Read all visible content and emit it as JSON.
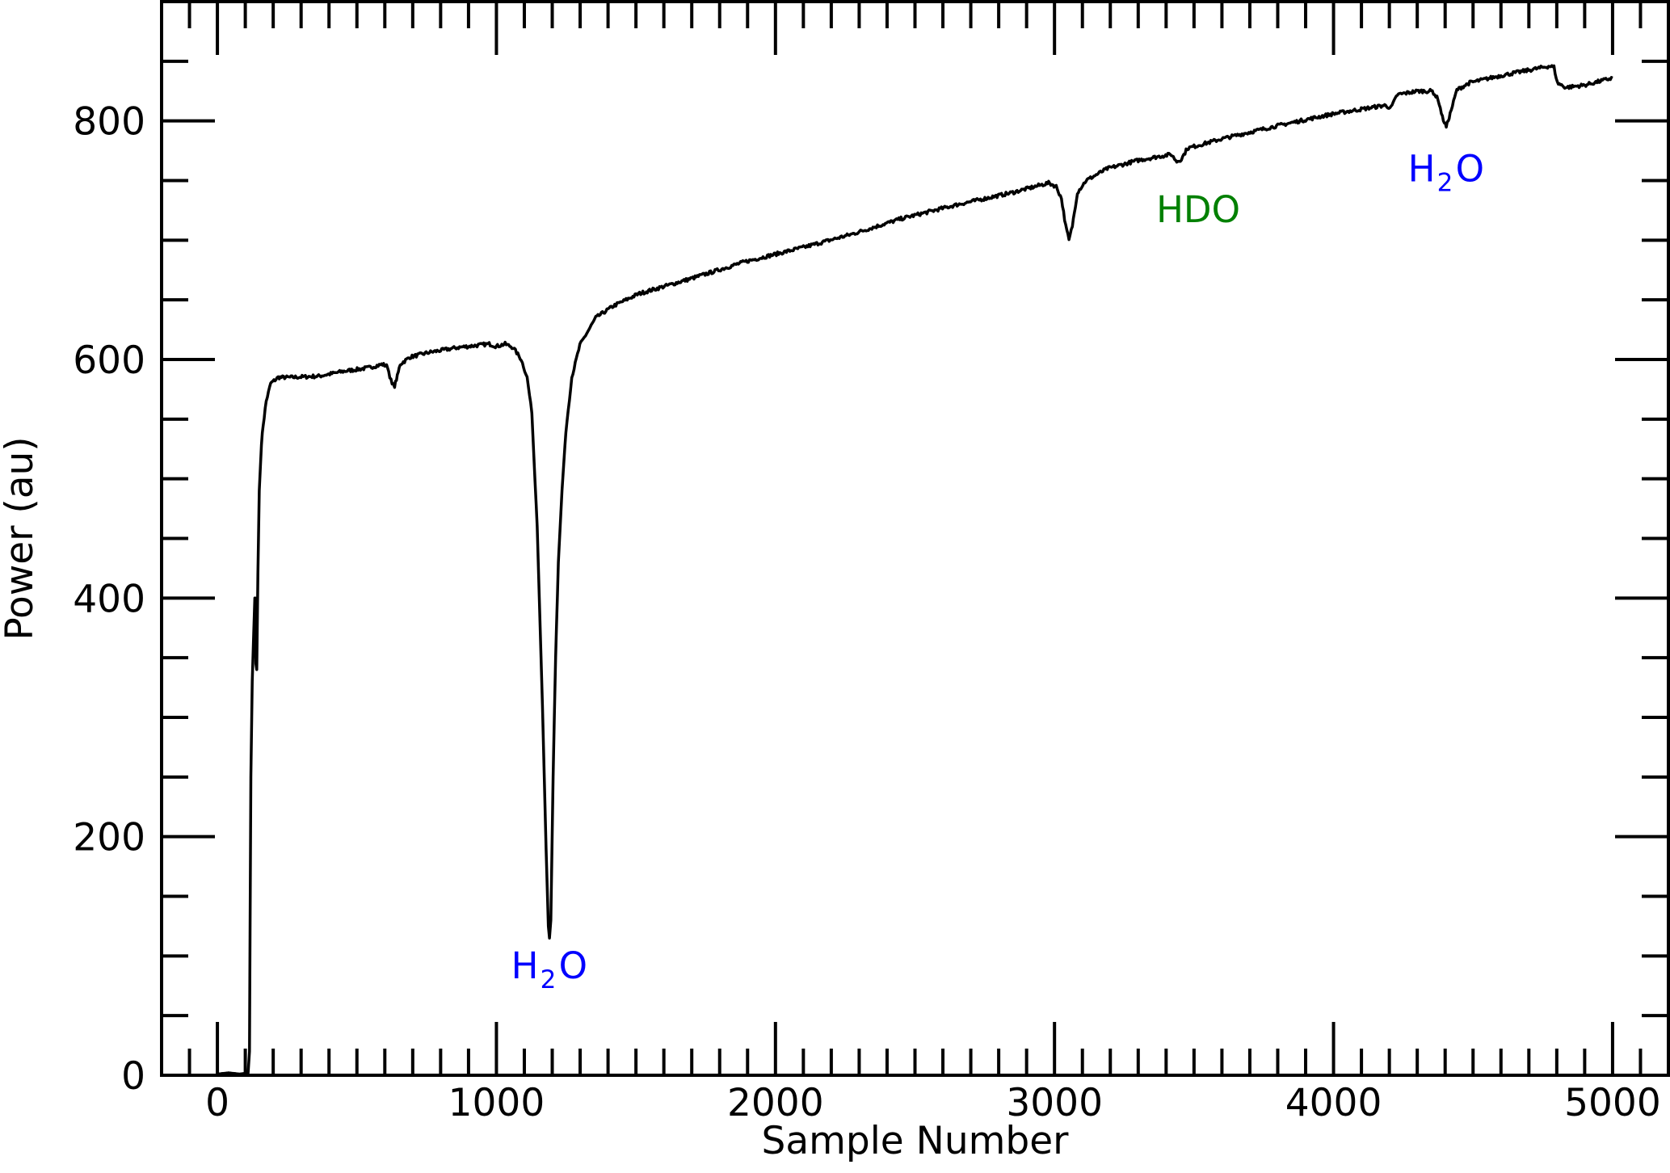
{
  "chart_data": {
    "type": "line",
    "title": "",
    "xlabel": "Sample Number",
    "ylabel": "Power (au)",
    "xlim": [
      -200,
      5200
    ],
    "ylim": [
      0,
      900
    ],
    "x_major_ticks": [
      0,
      1000,
      2000,
      3000,
      4000,
      5000
    ],
    "x_minor_step": 100,
    "y_major_ticks": [
      0,
      200,
      400,
      600,
      800
    ],
    "y_minor_step": 50,
    "grid": false,
    "line_color": "#000000",
    "series": [
      {
        "x": [
          0,
          40,
          80,
          110,
          115,
          117,
          120,
          125,
          130,
          134,
          136,
          138,
          141,
          145,
          150,
          158,
          164,
          175,
          191,
          218,
          260,
          363,
          450,
          540,
          592,
          610,
          618,
          626,
          635,
          645,
          655,
          690,
          760,
          860,
          974,
          1000,
          1031,
          1060,
          1089,
          1110,
          1127,
          1146,
          1165,
          1178,
          1186,
          1190,
          1195,
          1203,
          1212,
          1222,
          1235,
          1249,
          1270,
          1299,
          1356,
          1420,
          1509,
          1700,
          1891,
          2100,
          2273,
          2450,
          2655,
          2850,
          2979,
          3006,
          3025,
          3040,
          3052,
          3064,
          3082,
          3113,
          3189,
          3300,
          3418,
          3438,
          3455,
          3476,
          3600,
          3800,
          4000,
          4183,
          4206,
          4229,
          4300,
          4354,
          4375,
          4390,
          4404,
          4418,
          4442,
          4488,
          4600,
          4775,
          4790,
          4802,
          4832,
          4900,
          5000
        ],
        "y": [
          1,
          2,
          1,
          2,
          20,
          120,
          250,
          330,
          370,
          400,
          400,
          345,
          340,
          420,
          490,
          530,
          545,
          565,
          580,
          585,
          585,
          586,
          590,
          593,
          596,
          594,
          586,
          579,
          578,
          586,
          596,
          602,
          606,
          610,
          613,
          611,
          613,
          610,
          600,
          585,
          555,
          460,
          310,
          190,
          125,
          115,
          130,
          250,
          350,
          430,
          490,
          540,
          585,
          612,
          635,
          645,
          655,
          668,
          682,
          694,
          705,
          718,
          730,
          740,
          748,
          745,
          735,
          712,
          700,
          712,
          740,
          750,
          760,
          767,
          772,
          766,
          768,
          777,
          785,
          796,
          806,
          813,
          811,
          822,
          825,
          825,
          818,
          803,
          795,
          806,
          826,
          832,
          838,
          846,
          845,
          832,
          828,
          830,
          836
        ]
      }
    ],
    "annotations": [
      {
        "text": "H",
        "sub": "2",
        "tail": "O",
        "x": 1190,
        "y": 92,
        "color": "#0000ff"
      },
      {
        "text": "HDO",
        "sub": "",
        "tail": "",
        "x": 3515,
        "y": 726,
        "color": "#008000"
      },
      {
        "text": "H",
        "sub": "2",
        "tail": "O",
        "x": 4404,
        "y": 760,
        "color": "#0000ff"
      }
    ]
  }
}
